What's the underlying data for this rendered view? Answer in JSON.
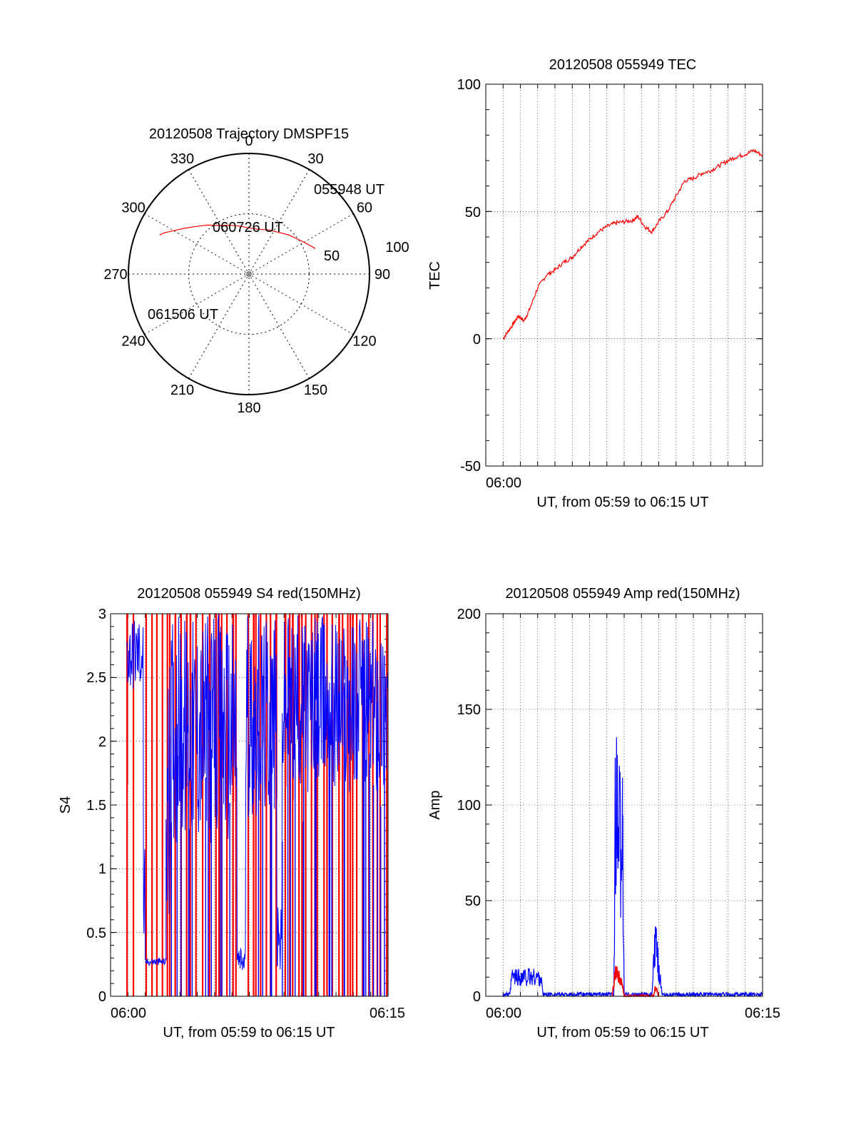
{
  "figure": {
    "background": "#ffffff",
    "line_colors": {
      "red": "#ff0000",
      "blue": "#0000ff"
    }
  },
  "chart_data": [
    {
      "type": "polar",
      "title": "20120508 Trajectory DMSPF15",
      "angle_labels": [
        "0",
        "30",
        "60",
        "90",
        "120",
        "150",
        "180",
        "210",
        "240",
        "270",
        "300",
        "330"
      ],
      "radius_labels": [
        "50",
        "100"
      ],
      "rmax": 100,
      "direction": "clockwise-from-north",
      "trajectory": {
        "color": "#ff0000",
        "azimuth_deg": [
          69,
          62,
          55,
          45,
          34,
          24,
          12,
          2,
          -9,
          -20,
          -31,
          -40,
          -48,
          -55,
          -60,
          -64,
          -66.4
        ],
        "zenith_distance": [
          59,
          54,
          50,
          46,
          42,
          40,
          38,
          38,
          40,
          43,
          47,
          53,
          59,
          66,
          72,
          78,
          80.9
        ]
      },
      "annotations": [
        "055948 UT",
        "060726 UT",
        "061506 UT"
      ]
    },
    {
      "type": "line",
      "title": "20120508 055949 TEC",
      "xlabel": "UT, from 05:59 to 06:15 UT",
      "ylabel": "TEC",
      "x_tick_labels": [
        "06:00"
      ],
      "y_tick_labels": [
        "100",
        "50",
        "0",
        "-50"
      ],
      "ylim": [
        -50,
        100
      ],
      "grid": true,
      "series": [
        {
          "color": "#ff0000",
          "x_minutes_after_0600": [
            0.0,
            0.3,
            0.6,
            0.9,
            1.2,
            1.5,
            2.0,
            2.5,
            3.0,
            3.5,
            4.0,
            4.5,
            5.0,
            5.5,
            6.0,
            6.5,
            7.0,
            7.5,
            7.8,
            8.2,
            8.6,
            9.0,
            9.5,
            10.0,
            10.5,
            11.0,
            11.5,
            12.0,
            12.5,
            13.0,
            13.5,
            14.0,
            14.5,
            15.0
          ],
          "y": [
            0,
            3,
            6,
            9,
            7,
            11,
            20,
            25,
            27,
            30,
            32,
            36,
            39,
            42,
            44,
            45.5,
            46,
            46.5,
            48,
            44,
            42,
            46,
            50,
            56,
            62,
            63,
            65,
            66,
            68,
            70,
            71.5,
            72.5,
            74,
            72
          ]
        }
      ]
    },
    {
      "type": "line",
      "title": "20120508 055949 S4 red(150MHz)",
      "xlabel": "UT, from 05:59 to 06:15 UT",
      "ylabel": "S4",
      "x_tick_labels": [
        "06:00",
        "06:15"
      ],
      "y_tick_labels": [
        "3",
        "2.5",
        "2",
        "1.5",
        "1",
        "0.5",
        "0"
      ],
      "ylim": [
        0,
        3
      ],
      "grid": true,
      "series": [
        {
          "color": "#ff0000",
          "note": "noisy, saturating spikes"
        },
        {
          "color": "#0000ff",
          "note": "noisy, saturating spikes"
        }
      ]
    },
    {
      "type": "line",
      "title": "20120508 055949 Amp red(150MHz)",
      "xlabel": "UT, from 05:59 to 06:15 UT",
      "ylabel": "Amp",
      "x_tick_labels": [
        "06:00",
        "06:15"
      ],
      "y_tick_labels": [
        "200",
        "150",
        "100",
        "50",
        "0"
      ],
      "ylim": [
        0,
        200
      ],
      "grid": true,
      "series": [
        {
          "color": "#0000ff",
          "x_minutes_after_0600": [
            0.0,
            0.4,
            0.5,
            2.2,
            2.3,
            3.0,
            6.0,
            6.4,
            6.5,
            6.6,
            6.9,
            7.0,
            8.6,
            8.8,
            9.0,
            9.2,
            9.5,
            12.0,
            15.0
          ],
          "y": [
            1,
            1,
            10,
            10,
            1,
            1,
            1,
            1,
            105,
            85,
            80,
            1,
            1,
            28,
            15,
            1,
            1,
            1,
            1
          ]
        },
        {
          "color": "#ff0000",
          "x_minutes_after_0600": [
            6.3,
            6.5,
            6.7,
            6.9,
            7.0,
            8.7,
            8.8,
            8.9,
            9.0
          ],
          "y": [
            0,
            13,
            10,
            6,
            0,
            0,
            5,
            3,
            0
          ]
        }
      ]
    }
  ]
}
